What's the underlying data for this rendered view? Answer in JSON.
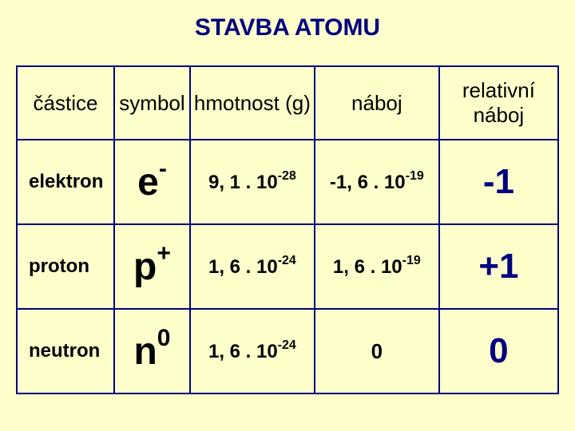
{
  "title": "STAVBA ATOMU",
  "headers": {
    "particle": "částice",
    "symbol": "symbol",
    "mass": "hmotnost (g)",
    "charge": "náboj",
    "rel": "relativní náboj"
  },
  "rows": [
    {
      "name": "elektron",
      "symbol_base": "e",
      "symbol_sup": "-",
      "mass_coef": "9, 1 . 10",
      "mass_exp": "-28",
      "charge_coef": "-1, 6 . 10",
      "charge_exp": "-19",
      "rel": "-1"
    },
    {
      "name": "proton",
      "symbol_base": "p",
      "symbol_sup": "+",
      "mass_coef": "1, 6 . 10",
      "mass_exp": "-24",
      "charge_coef": "1, 6 . 10",
      "charge_exp": "-19",
      "rel": "+1"
    },
    {
      "name": "neutron",
      "symbol_base": "n",
      "symbol_sup": "0",
      "mass_coef": "1, 6 . 10",
      "mass_exp": "-24",
      "charge_coef": "0",
      "charge_exp": "",
      "rel": "0"
    }
  ],
  "colors": {
    "background": "#ffffcc",
    "border": "#000080",
    "title": "#000080",
    "text": "#000000",
    "rel_text": "#000080"
  }
}
